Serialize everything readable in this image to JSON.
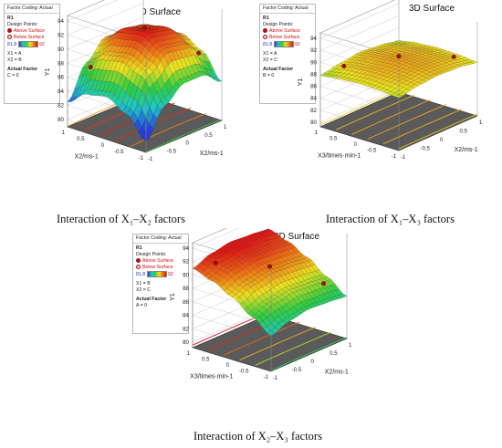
{
  "chart_data": [
    {
      "type": "surface3d",
      "title": "3D Surface",
      "caption": "Interaction of X₁–X₂ factors",
      "xlabel": "X2/ms-1",
      "ylabel": "X2/ms-1",
      "zlabel": "Y1",
      "zlim": [
        80,
        94
      ],
      "z_ticks": [
        "94",
        "92",
        "90",
        "88",
        "86",
        "84",
        "82",
        "80"
      ],
      "x_ticks": [
        "1",
        "0.5",
        "0",
        "-0.5",
        "-1"
      ],
      "y_ticks": [
        "-1",
        "-0.5",
        "0",
        "0.5",
        "1"
      ],
      "grid": [
        [
          80.5,
          84.5,
          86.5,
          86.5,
          84.5
        ],
        [
          83.5,
          88.5,
          90.5,
          90.0,
          88.0
        ],
        [
          85.0,
          89.5,
          92.0,
          91.5,
          89.5
        ],
        [
          84.5,
          89.0,
          91.5,
          91.0,
          89.0
        ],
        [
          82.5,
          87.0,
          89.5,
          89.0,
          87.0
        ]
      ],
      "legend": {
        "coding": "Factor Coding: Actual",
        "response": "R1",
        "design_points": "Design Points:",
        "above": "Above Surface",
        "below": "Below Surface",
        "scale_min": "81.8",
        "scale_max": "92",
        "x1": "X1 = A",
        "x2": "X2 = B",
        "actual_factor": "Actual Factor",
        "actual_value": "C = 0"
      }
    },
    {
      "type": "surface3d",
      "title": "3D Surface",
      "caption": "Interaction of X₁–X₃ factors",
      "xlabel": "X3/times·min-1",
      "ylabel": "X2/ms-1",
      "zlabel": "Y1",
      "zlim": [
        80,
        94
      ],
      "z_ticks": [
        "94",
        "92",
        "90",
        "88",
        "86",
        "84",
        "82",
        "80"
      ],
      "x_ticks": [
        "1",
        "0.5",
        "0",
        "-0.5",
        "-1"
      ],
      "y_ticks": [
        "-1",
        "-0.5",
        "0",
        "0.5",
        "1"
      ],
      "grid": [
        [
          88.0,
          88.6,
          88.9,
          88.7,
          88.2
        ],
        [
          88.3,
          89.0,
          89.3,
          89.1,
          88.5
        ],
        [
          88.4,
          89.1,
          89.5,
          89.2,
          88.6
        ],
        [
          88.2,
          88.9,
          89.2,
          89.0,
          88.4
        ],
        [
          87.8,
          88.4,
          88.8,
          88.5,
          87.9
        ]
      ],
      "legend": {
        "coding": "Factor Coding: Actual",
        "response": "R1",
        "design_points": "Design Points:",
        "above": "Above Surface",
        "below": "Below Surface",
        "scale_min": "81.8",
        "scale_max": "92",
        "x1": "X1 = A",
        "x2": "X2 = C",
        "actual_factor": "Actual Factor",
        "actual_value": "B = 0"
      }
    },
    {
      "type": "surface3d",
      "title": "3D Surface",
      "caption": "Interaction of X₂–X₃ factors",
      "xlabel": "X3/times·min-1",
      "ylabel": "X2/ms-1",
      "zlabel": "Y1",
      "zlim": [
        80,
        94
      ],
      "z_ticks": [
        "94",
        "92",
        "90",
        "88",
        "86",
        "84",
        "82",
        "80"
      ],
      "x_ticks": [
        "1",
        "0.5",
        "0",
        "-0.5",
        "-1"
      ],
      "y_ticks": [
        "-1",
        "-0.5",
        "0",
        "0.5",
        "1"
      ],
      "grid": [
        [
          84.5,
          85.5,
          86.0,
          85.8,
          85.5
        ],
        [
          86.5,
          87.5,
          88.0,
          87.8,
          87.5
        ],
        [
          88.5,
          89.5,
          90.0,
          89.8,
          89.5
        ],
        [
          90.0,
          91.0,
          91.5,
          91.3,
          91.0
        ],
        [
          91.0,
          92.0,
          92.5,
          92.3,
          92.0
        ]
      ],
      "legend": {
        "coding": "Factor Coding: Actual",
        "response": "R1",
        "design_points": "Design Points:",
        "above": "Above Surface",
        "below": "Below Surface",
        "scale_min": "81.8",
        "scale_max": "92",
        "x1": "X1 = B",
        "x2": "X2 = C",
        "actual_factor": "Actual Factor",
        "actual_value": "A = 0"
      }
    }
  ]
}
